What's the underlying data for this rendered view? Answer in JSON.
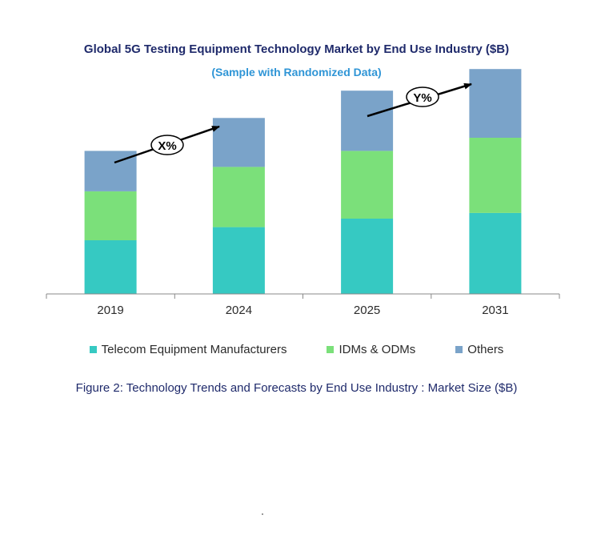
{
  "title": "Global 5G Testing Equipment Technology Market by End Use Industry ($B)",
  "subtitle": "(Sample with Randomized Data)",
  "caption": "Figure 2: Technology  Trends  and Forecasts by End Use Industry  : Market Size ($B)",
  "annotations": {
    "growth_1": "X%",
    "growth_2": "Y%"
  },
  "colors": {
    "telecom": "#36c9c2",
    "idms": "#7be07a",
    "others": "#7aa3c9",
    "axis": "#888888"
  },
  "chart_data": {
    "type": "bar",
    "stacked": true,
    "categories": [
      "2019",
      "2024",
      "2025",
      "2031"
    ],
    "series": [
      {
        "name": "Telecom Equipment Manufacturers",
        "values": [
          57,
          71,
          80,
          86
        ]
      },
      {
        "name": "IDMs & ODMs",
        "values": [
          52,
          64,
          72,
          80
        ]
      },
      {
        "name": "Others",
        "values": [
          43,
          52,
          64,
          73
        ]
      }
    ],
    "ylim": [
      0,
      240
    ],
    "legend_position": "bottom",
    "grid": false
  }
}
